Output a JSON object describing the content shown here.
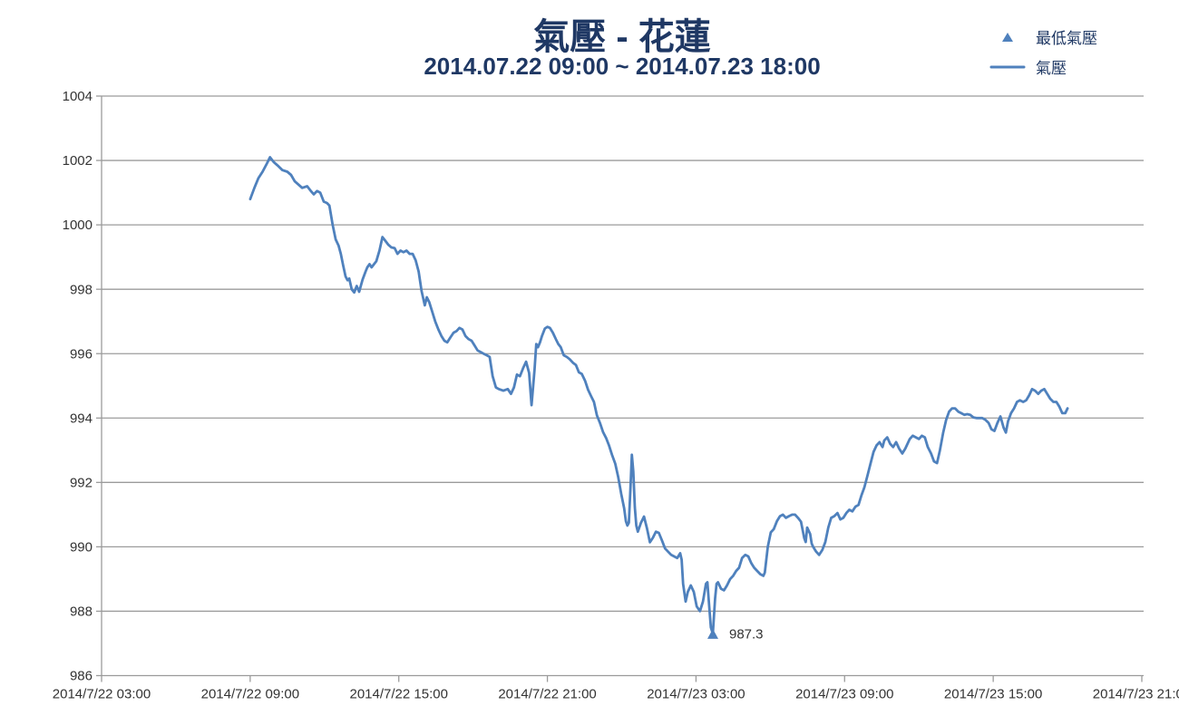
{
  "title": "氣壓 - 花蓮",
  "subtitle": "2014.07.22 09:00 ~ 2014.07.23 18:00",
  "legend": {
    "items": [
      {
        "label": "最低氣壓",
        "marker": "triangle"
      },
      {
        "label": "氣壓",
        "marker": "line"
      }
    ]
  },
  "colors": {
    "series_line": "#4F81BD",
    "marker": "#4F81BD",
    "title_text": "#1F3864",
    "axis_text": "#333333",
    "gridline": "#9B9B9B"
  },
  "chart_data": {
    "type": "line",
    "title": "氣壓 - 花蓮",
    "subtitle": "2014.07.22 09:00 ~ 2014.07.23 18:00",
    "xlabel": "",
    "ylabel": "",
    "grid": true,
    "legend_position": "top-right",
    "y_axis": {
      "range": [
        986,
        1004
      ],
      "ticks": [
        986,
        988,
        990,
        992,
        994,
        996,
        998,
        1000,
        1002,
        1004
      ]
    },
    "x_axis": {
      "range_hours": [
        3,
        45
      ],
      "tick_hours": [
        3,
        9,
        15,
        21,
        27,
        33,
        39,
        45
      ],
      "tick_labels": [
        "2014/7/22 03:00",
        "2014/7/22 09:00",
        "2014/7/22 15:00",
        "2014/7/22 21:00",
        "2014/7/23 03:00",
        "2014/7/23 09:00",
        "2014/7/23 15:00",
        "2014/7/23 21:00"
      ]
    },
    "series": [
      {
        "name": "氣壓",
        "type": "line",
        "color": "#4F81BD",
        "points": [
          [
            9,
            1000.8
          ],
          [
            9.17,
            1001.15
          ],
          [
            9.33,
            1001.45
          ],
          [
            9.5,
            1001.65
          ],
          [
            9.67,
            1001.9
          ],
          [
            9.8,
            1002.1
          ],
          [
            9.95,
            1001.95
          ],
          [
            10.1,
            1001.85
          ],
          [
            10.3,
            1001.7
          ],
          [
            10.5,
            1001.65
          ],
          [
            10.65,
            1001.55
          ],
          [
            10.8,
            1001.35
          ],
          [
            10.95,
            1001.25
          ],
          [
            11.1,
            1001.15
          ],
          [
            11.3,
            1001.2
          ],
          [
            11.45,
            1001.05
          ],
          [
            11.57,
            1000.95
          ],
          [
            11.7,
            1001.05
          ],
          [
            11.83,
            1001
          ],
          [
            11.97,
            1000.72
          ],
          [
            12.1,
            1000.68
          ],
          [
            12.2,
            1000.6
          ],
          [
            12.33,
            1000
          ],
          [
            12.45,
            999.55
          ],
          [
            12.57,
            999.35
          ],
          [
            12.66,
            999.1
          ],
          [
            12.75,
            998.75
          ],
          [
            12.85,
            998.4
          ],
          [
            12.93,
            998.28
          ],
          [
            13,
            998.33
          ],
          [
            13.1,
            998
          ],
          [
            13.2,
            997.9
          ],
          [
            13.3,
            998.1
          ],
          [
            13.4,
            997.92
          ],
          [
            13.54,
            998.3
          ],
          [
            13.66,
            998.55
          ],
          [
            13.73,
            998.68
          ],
          [
            13.82,
            998.78
          ],
          [
            13.9,
            998.68
          ],
          [
            14,
            998.78
          ],
          [
            14.09,
            998.87
          ],
          [
            14.22,
            999.2
          ],
          [
            14.34,
            999.62
          ],
          [
            14.46,
            999.5
          ],
          [
            14.58,
            999.38
          ],
          [
            14.7,
            999.3
          ],
          [
            14.83,
            999.28
          ],
          [
            14.95,
            999.1
          ],
          [
            15.07,
            999.2
          ],
          [
            15.19,
            999.15
          ],
          [
            15.31,
            999.2
          ],
          [
            15.44,
            999.1
          ],
          [
            15.56,
            999.1
          ],
          [
            15.68,
            998.9
          ],
          [
            15.8,
            998.55
          ],
          [
            15.92,
            997.95
          ],
          [
            16.05,
            997.5
          ],
          [
            16.13,
            997.75
          ],
          [
            16.23,
            997.6
          ],
          [
            16.35,
            997.3
          ],
          [
            16.47,
            997
          ],
          [
            16.6,
            996.75
          ],
          [
            16.72,
            996.55
          ],
          [
            16.84,
            996.4
          ],
          [
            16.96,
            996.35
          ],
          [
            17.08,
            996.5
          ],
          [
            17.21,
            996.65
          ],
          [
            17.33,
            996.7
          ],
          [
            17.45,
            996.8
          ],
          [
            17.57,
            996.75
          ],
          [
            17.69,
            996.55
          ],
          [
            17.82,
            996.45
          ],
          [
            17.94,
            996.4
          ],
          [
            18.06,
            996.25
          ],
          [
            18.18,
            996.1
          ],
          [
            18.3,
            996.05
          ],
          [
            18.42,
            996
          ],
          [
            18.55,
            995.95
          ],
          [
            18.67,
            995.9
          ],
          [
            18.79,
            995.3
          ],
          [
            18.92,
            994.95
          ],
          [
            19.04,
            994.9
          ],
          [
            19.22,
            994.85
          ],
          [
            19.4,
            994.9
          ],
          [
            19.53,
            994.75
          ],
          [
            19.65,
            994.95
          ],
          [
            19.77,
            995.35
          ],
          [
            19.89,
            995.3
          ],
          [
            20.02,
            995.55
          ],
          [
            20.14,
            995.75
          ],
          [
            20.26,
            995.4
          ],
          [
            20.36,
            994.4
          ],
          [
            20.48,
            995.5
          ],
          [
            20.55,
            996.3
          ],
          [
            20.62,
            996.2
          ],
          [
            20.7,
            996.35
          ],
          [
            20.78,
            996.55
          ],
          [
            20.9,
            996.78
          ],
          [
            21,
            996.83
          ],
          [
            21.1,
            996.8
          ],
          [
            21.22,
            996.65
          ],
          [
            21.34,
            996.45
          ],
          [
            21.44,
            996.3
          ],
          [
            21.54,
            996.2
          ],
          [
            21.66,
            995.95
          ],
          [
            21.78,
            995.9
          ],
          [
            21.9,
            995.83
          ],
          [
            22.03,
            995.72
          ],
          [
            22.15,
            995.65
          ],
          [
            22.27,
            995.42
          ],
          [
            22.39,
            995.37
          ],
          [
            22.52,
            995.16
          ],
          [
            22.64,
            994.88
          ],
          [
            22.76,
            994.69
          ],
          [
            22.88,
            994.5
          ],
          [
            23,
            994.08
          ],
          [
            23.12,
            993.85
          ],
          [
            23.25,
            993.56
          ],
          [
            23.37,
            993.38
          ],
          [
            23.49,
            993.14
          ],
          [
            23.61,
            992.86
          ],
          [
            23.74,
            992.58
          ],
          [
            23.86,
            992.16
          ],
          [
            23.98,
            991.64
          ],
          [
            24.1,
            991.2
          ],
          [
            24.17,
            990.8
          ],
          [
            24.23,
            990.66
          ],
          [
            24.29,
            990.75
          ],
          [
            24.35,
            991.78
          ],
          [
            24.41,
            992.86
          ],
          [
            24.47,
            992.34
          ],
          [
            24.53,
            991.22
          ],
          [
            24.59,
            990.66
          ],
          [
            24.65,
            990.47
          ],
          [
            24.78,
            990.75
          ],
          [
            24.9,
            990.94
          ],
          [
            25.02,
            990.57
          ],
          [
            25.14,
            990.14
          ],
          [
            25.26,
            990.28
          ],
          [
            25.38,
            990.47
          ],
          [
            25.5,
            990.43
          ],
          [
            25.63,
            990.19
          ],
          [
            25.75,
            989.95
          ],
          [
            25.87,
            989.85
          ],
          [
            26,
            989.75
          ],
          [
            26.12,
            989.7
          ],
          [
            26.24,
            989.65
          ],
          [
            26.36,
            989.8
          ],
          [
            26.42,
            989.6
          ],
          [
            26.48,
            988.85
          ],
          [
            26.58,
            988.3
          ],
          [
            26.67,
            988.6
          ],
          [
            26.79,
            988.8
          ],
          [
            26.91,
            988.6
          ],
          [
            27.03,
            988.15
          ],
          [
            27.16,
            988
          ],
          [
            27.28,
            988.3
          ],
          [
            27.4,
            988.85
          ],
          [
            27.46,
            988.9
          ],
          [
            27.52,
            988.3
          ],
          [
            27.6,
            987.5
          ],
          [
            27.68,
            987.3
          ],
          [
            27.77,
            988.4
          ],
          [
            27.83,
            988.85
          ],
          [
            27.89,
            988.9
          ],
          [
            28.01,
            988.7
          ],
          [
            28.13,
            988.65
          ],
          [
            28.25,
            988.8
          ],
          [
            28.38,
            989
          ],
          [
            28.5,
            989.1
          ],
          [
            28.62,
            989.25
          ],
          [
            28.74,
            989.35
          ],
          [
            28.86,
            989.65
          ],
          [
            28.99,
            989.75
          ],
          [
            29.11,
            989.7
          ],
          [
            29.23,
            989.5
          ],
          [
            29.35,
            989.35
          ],
          [
            29.47,
            989.25
          ],
          [
            29.6,
            989.15
          ],
          [
            29.72,
            989.1
          ],
          [
            29.78,
            989.2
          ],
          [
            29.9,
            990
          ],
          [
            30.02,
            990.45
          ],
          [
            30.14,
            990.55
          ],
          [
            30.27,
            990.8
          ],
          [
            30.39,
            990.95
          ],
          [
            30.51,
            991
          ],
          [
            30.63,
            990.9
          ],
          [
            30.75,
            990.95
          ],
          [
            30.88,
            991
          ],
          [
            31,
            991
          ],
          [
            31.12,
            990.9
          ],
          [
            31.24,
            990.78
          ],
          [
            31.37,
            990.27
          ],
          [
            31.43,
            990.15
          ],
          [
            31.49,
            990.6
          ],
          [
            31.61,
            990.4
          ],
          [
            31.67,
            990.1
          ],
          [
            31.73,
            990
          ],
          [
            31.85,
            989.85
          ],
          [
            31.97,
            989.75
          ],
          [
            32.1,
            989.9
          ],
          [
            32.22,
            990.15
          ],
          [
            32.34,
            990.6
          ],
          [
            32.46,
            990.9
          ],
          [
            32.58,
            990.95
          ],
          [
            32.71,
            991.05
          ],
          [
            32.83,
            990.85
          ],
          [
            32.95,
            990.9
          ],
          [
            33.07,
            991.05
          ],
          [
            33.19,
            991.15
          ],
          [
            33.31,
            991.1
          ],
          [
            33.44,
            991.25
          ],
          [
            33.56,
            991.3
          ],
          [
            33.68,
            991.6
          ],
          [
            33.8,
            991.85
          ],
          [
            33.92,
            992.2
          ],
          [
            34.05,
            992.6
          ],
          [
            34.17,
            992.95
          ],
          [
            34.29,
            993.15
          ],
          [
            34.41,
            993.25
          ],
          [
            34.53,
            993.1
          ],
          [
            34.6,
            993.3
          ],
          [
            34.72,
            993.4
          ],
          [
            34.84,
            993.2
          ],
          [
            34.96,
            993.1
          ],
          [
            35.08,
            993.25
          ],
          [
            35.2,
            993.05
          ],
          [
            35.33,
            992.9
          ],
          [
            35.45,
            993.05
          ],
          [
            35.63,
            993.35
          ],
          [
            35.75,
            993.45
          ],
          [
            35.88,
            993.4
          ],
          [
            36,
            993.35
          ],
          [
            36.12,
            993.45
          ],
          [
            36.24,
            993.4
          ],
          [
            36.36,
            993.1
          ],
          [
            36.49,
            992.9
          ],
          [
            36.61,
            992.65
          ],
          [
            36.73,
            992.6
          ],
          [
            36.85,
            993
          ],
          [
            36.98,
            993.55
          ],
          [
            37.1,
            993.95
          ],
          [
            37.22,
            994.2
          ],
          [
            37.34,
            994.3
          ],
          [
            37.46,
            994.3
          ],
          [
            37.59,
            994.2
          ],
          [
            37.71,
            994.15
          ],
          [
            37.83,
            994.1
          ],
          [
            37.95,
            994.12
          ],
          [
            38.07,
            994.1
          ],
          [
            38.2,
            994.02
          ],
          [
            38.32,
            994
          ],
          [
            38.44,
            994
          ],
          [
            38.56,
            994
          ],
          [
            38.68,
            993.95
          ],
          [
            38.81,
            993.85
          ],
          [
            38.93,
            993.65
          ],
          [
            39.05,
            993.6
          ],
          [
            39.17,
            993.85
          ],
          [
            39.29,
            994.05
          ],
          [
            39.42,
            993.7
          ],
          [
            39.51,
            993.55
          ],
          [
            39.6,
            993.9
          ],
          [
            39.72,
            994.15
          ],
          [
            39.84,
            994.3
          ],
          [
            39.96,
            994.5
          ],
          [
            40.08,
            994.55
          ],
          [
            40.21,
            994.5
          ],
          [
            40.33,
            994.55
          ],
          [
            40.45,
            994.7
          ],
          [
            40.57,
            994.9
          ],
          [
            40.69,
            994.85
          ],
          [
            40.82,
            994.75
          ],
          [
            40.94,
            994.85
          ],
          [
            41.06,
            994.9
          ],
          [
            41.18,
            994.75
          ],
          [
            41.3,
            994.6
          ],
          [
            41.43,
            994.5
          ],
          [
            41.55,
            994.5
          ],
          [
            41.67,
            994.35
          ],
          [
            41.79,
            994.15
          ],
          [
            41.91,
            994.15
          ],
          [
            42,
            994.3
          ]
        ]
      },
      {
        "name": "最低氣壓",
        "type": "scatter",
        "marker": "triangle-up",
        "color": "#4F81BD",
        "points": [
          [
            27.68,
            987.3
          ]
        ],
        "data_label": "987.3"
      }
    ]
  }
}
